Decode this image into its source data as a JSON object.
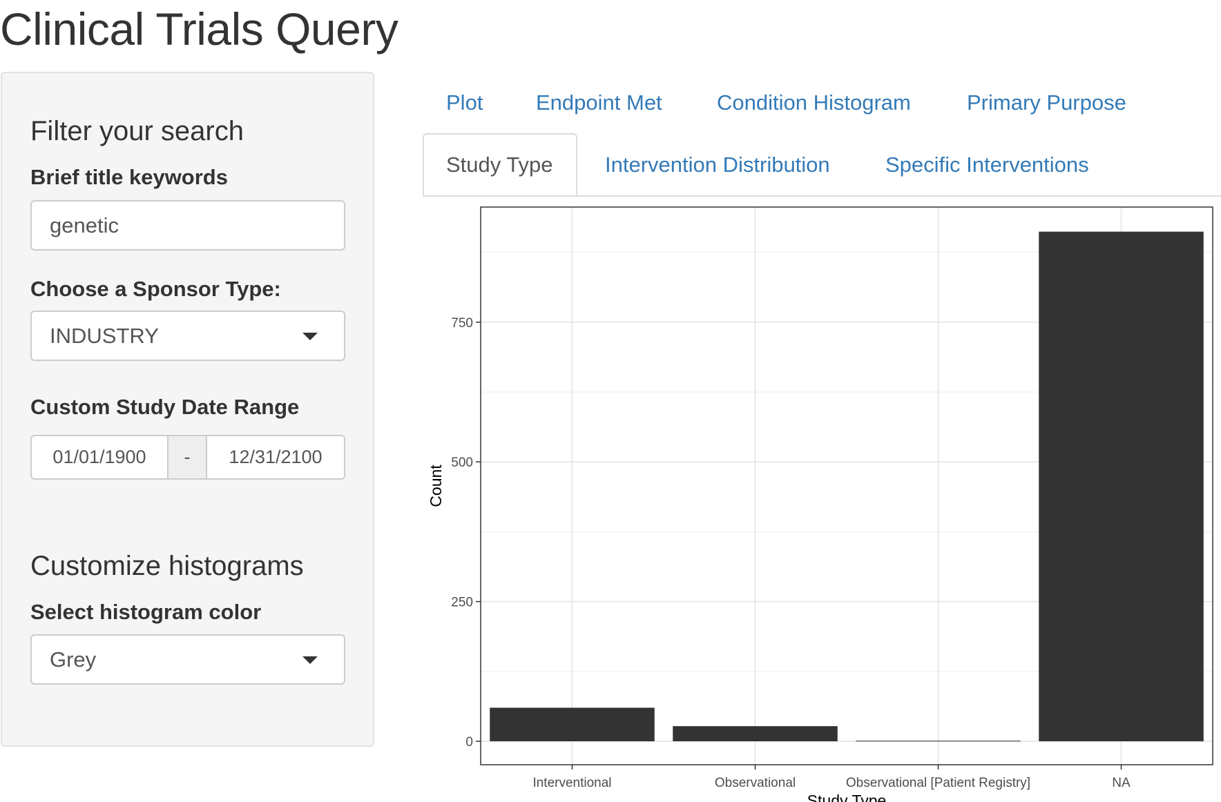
{
  "app": {
    "title": "Clinical Trials Query"
  },
  "sidebar": {
    "filter_heading": "Filter your search",
    "keywords_label": "Brief title keywords",
    "keywords_value": "genetic",
    "sponsor_label": "Choose a Sponsor Type:",
    "sponsor_value": "INDUSTRY",
    "date_label": "Custom Study Date Range",
    "date_start": "01/01/1900",
    "date_separator": "-",
    "date_end": "12/31/2100",
    "customize_heading": "Customize histograms",
    "color_label": "Select histogram color",
    "color_value": "Grey"
  },
  "tabs": {
    "row1": [
      "Plot",
      "Endpoint Met",
      "Condition Histogram",
      "Primary Purpose"
    ],
    "row2": [
      "Study Type",
      "Intervention Distribution",
      "Specific Interventions"
    ],
    "active": "Study Type"
  },
  "chart_data": {
    "type": "bar",
    "categories": [
      "Interventional",
      "Observational",
      "Observational [Patient Registry]",
      "NA"
    ],
    "values": [
      60,
      27,
      1,
      912
    ],
    "xlabel": "Study Type",
    "ylabel": "Count",
    "ylim": [
      -42,
      956
    ],
    "yticks": [
      0,
      250,
      500,
      750
    ],
    "bar_color": "#333333",
    "grid": true,
    "theme": "bw"
  }
}
